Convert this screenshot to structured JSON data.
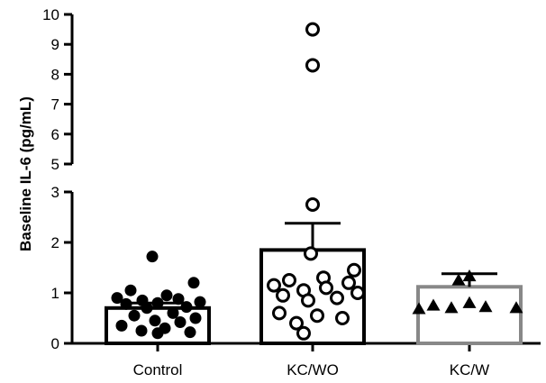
{
  "chart_data": {
    "type": "bar",
    "ylabel": "Baseline IL-6 (pg/mL)",
    "xlabel": "",
    "title": "",
    "categories": [
      "Control",
      "KC/WO",
      "KC/W"
    ],
    "y_axis": {
      "broken": true,
      "lower_segment": {
        "range": [
          0,
          3
        ],
        "ticks": [
          "0",
          "1",
          "2",
          "3"
        ]
      },
      "upper_segment": {
        "range": [
          5,
          10
        ],
        "ticks": [
          "5",
          "6",
          "7",
          "8",
          "9",
          "10"
        ]
      }
    },
    "bars": [
      {
        "category": "Control",
        "mean": 0.7,
        "error_upper": 0.8,
        "marker": "filled-circle",
        "bar_border": "#000000"
      },
      {
        "category": "KC/WO",
        "mean": 1.85,
        "error_upper": 2.38,
        "marker": "open-circle",
        "bar_border": "#000000"
      },
      {
        "category": "KC/W",
        "mean": 1.12,
        "error_upper": 1.38,
        "marker": "filled-triangle",
        "bar_border": "#888888"
      }
    ],
    "points": {
      "Control": [
        1.72,
        1.2,
        1.05,
        0.95,
        0.9,
        0.88,
        0.85,
        0.82,
        0.8,
        0.78,
        0.72,
        0.7,
        0.6,
        0.55,
        0.5,
        0.45,
        0.42,
        0.35,
        0.3,
        0.25,
        0.22,
        0.2
      ],
      "KC/WO": [
        9.5,
        8.3,
        2.75,
        1.78,
        1.45,
        1.3,
        1.25,
        1.2,
        1.15,
        1.1,
        1.05,
        1.0,
        0.95,
        0.9,
        0.85,
        0.6,
        0.55,
        0.5,
        0.4,
        0.2
      ],
      "KC/W": [
        1.33,
        1.25,
        0.8,
        0.75,
        0.72,
        0.7,
        0.7,
        0.68
      ]
    }
  }
}
